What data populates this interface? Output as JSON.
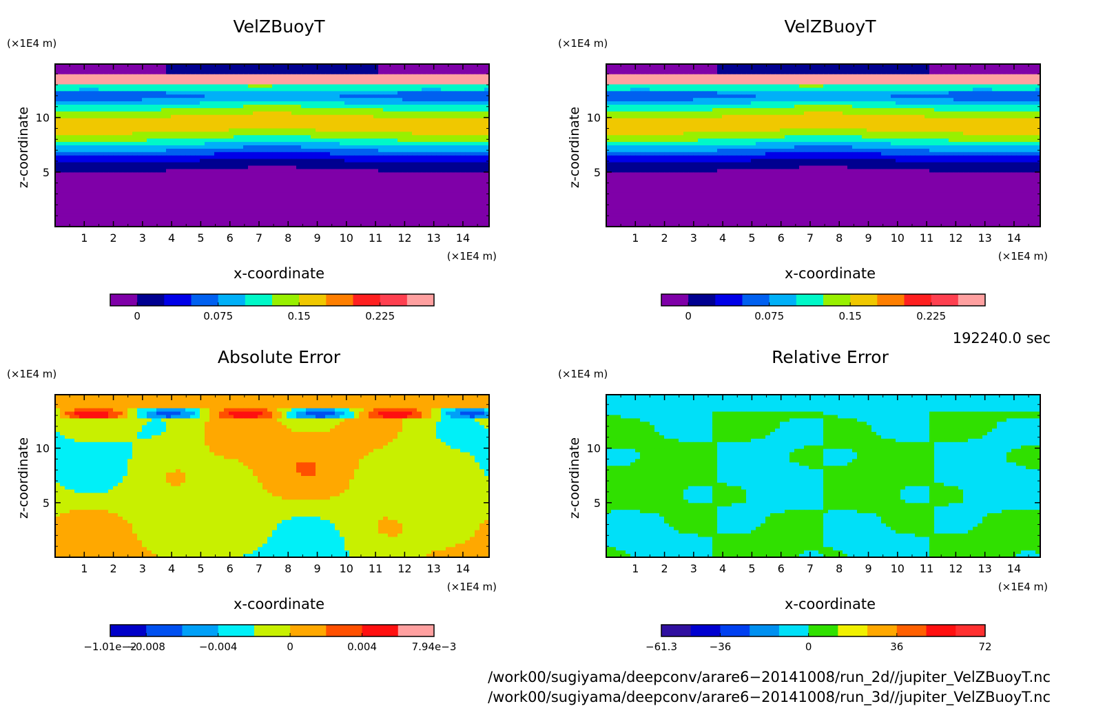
{
  "chart_data": [
    {
      "type": "heatmap",
      "title": "VelZBuoyT",
      "xlabel": "x-coordinate",
      "ylabel": "z-coordinate",
      "x_unit": "(×1E4 m)",
      "y_unit": "(×1E4 m)",
      "xlim": [
        0,
        14.9
      ],
      "ylim": [
        0,
        14.9
      ],
      "x_ticks": [
        "1",
        "2",
        "3",
        "4",
        "5",
        "6",
        "7",
        "8",
        "9",
        "10",
        "11",
        "12",
        "13",
        "14"
      ],
      "y_ticks": [
        "5",
        "10"
      ],
      "pattern": "field",
      "colorbar": {
        "colors": [
          "#7f00a8",
          "#000090",
          "#0000e8",
          "#0060f0",
          "#00b0f8",
          "#00f8c8",
          "#98f000",
          "#f0c800",
          "#ff7f00",
          "#ff2020",
          "#ff4050",
          "#ffa0a0"
        ],
        "tick_labels": [
          "0",
          "0.075",
          "0.15",
          "0.225"
        ],
        "tick_positions": [
          1,
          4,
          7,
          10
        ]
      }
    },
    {
      "type": "heatmap",
      "title": "VelZBuoyT",
      "xlabel": "x-coordinate",
      "ylabel": "z-coordinate",
      "x_unit": "(×1E4 m)",
      "y_unit": "(×1E4 m)",
      "xlim": [
        0,
        14.9
      ],
      "ylim": [
        0,
        14.9
      ],
      "x_ticks": [
        "1",
        "2",
        "3",
        "4",
        "5",
        "6",
        "7",
        "8",
        "9",
        "10",
        "11",
        "12",
        "13",
        "14"
      ],
      "y_ticks": [
        "5",
        "10"
      ],
      "pattern": "field",
      "colorbar": {
        "colors": [
          "#7f00a8",
          "#000090",
          "#0000e8",
          "#0060f0",
          "#00b0f8",
          "#00f8c8",
          "#98f000",
          "#f0c800",
          "#ff7f00",
          "#ff2020",
          "#ff4050",
          "#ffa0a0"
        ],
        "tick_labels": [
          "0",
          "0.075",
          "0.15",
          "0.225"
        ],
        "tick_positions": [
          1,
          4,
          7,
          10
        ]
      }
    },
    {
      "type": "heatmap",
      "title": "Absolute Error",
      "xlabel": "x-coordinate",
      "ylabel": "z-coordinate",
      "x_unit": "(×1E4 m)",
      "y_unit": "(×1E4 m)",
      "xlim": [
        0,
        14.9
      ],
      "ylim": [
        0,
        14.9
      ],
      "x_ticks": [
        "1",
        "2",
        "3",
        "4",
        "5",
        "6",
        "7",
        "8",
        "9",
        "10",
        "11",
        "12",
        "13",
        "14"
      ],
      "y_ticks": [
        "5",
        "10"
      ],
      "pattern": "abs",
      "colorbar": {
        "colors": [
          "#0000c8",
          "#0050f0",
          "#00a0f8",
          "#00f0f8",
          "#c8f000",
          "#ffa800",
          "#ff5000",
          "#ff1010",
          "#ffa0a0"
        ],
        "tick_labels": [
          "−1.01e−2",
          "−0.008",
          "−0.004",
          "0",
          "0.004",
          "7.94e−3"
        ],
        "tick_positions": [
          0,
          1,
          3,
          5,
          7,
          9
        ]
      }
    },
    {
      "type": "heatmap",
      "title": "Relative Error",
      "xlabel": "x-coordinate",
      "ylabel": "z-coordinate",
      "x_unit": "(×1E4 m)",
      "y_unit": "(×1E4 m)",
      "xlim": [
        0,
        14.9
      ],
      "ylim": [
        0,
        14.9
      ],
      "x_ticks": [
        "1",
        "2",
        "3",
        "4",
        "5",
        "6",
        "7",
        "8",
        "9",
        "10",
        "11",
        "12",
        "13",
        "14"
      ],
      "y_ticks": [
        "5",
        "10"
      ],
      "pattern": "rel",
      "colorbar": {
        "colors": [
          "#3010a0",
          "#0000d0",
          "#0040f0",
          "#0090f0",
          "#00e0f8",
          "#30e000",
          "#f0f000",
          "#ffa800",
          "#ff6000",
          "#ff1010",
          "#ff3030"
        ],
        "tick_labels": [
          "−61.3",
          "−36",
          "0",
          "36",
          "72"
        ],
        "tick_positions": [
          0,
          2,
          5,
          8,
          11
        ]
      }
    }
  ],
  "annotations": {
    "time": "192240.0 sec",
    "file1": "/work00/sugiyama/deepconv/arare6−20141008/run_2d//jupiter_VelZBuoyT.nc",
    "file2": "/work00/sugiyama/deepconv/arare6−20141008/run_3d//jupiter_VelZBuoyT.nc"
  }
}
